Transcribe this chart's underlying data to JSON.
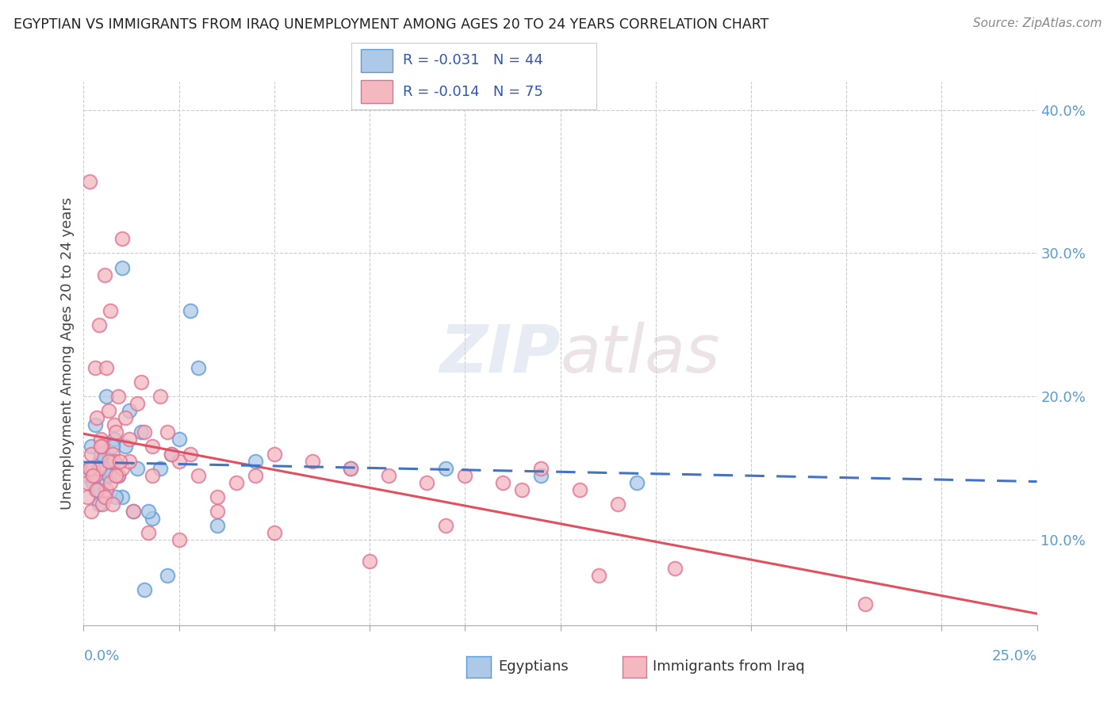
{
  "title": "EGYPTIAN VS IMMIGRANTS FROM IRAQ UNEMPLOYMENT AMONG AGES 20 TO 24 YEARS CORRELATION CHART",
  "source": "Source: ZipAtlas.com",
  "ylabel": "Unemployment Among Ages 20 to 24 years",
  "xmin": 0.0,
  "xmax": 25.0,
  "ymin": 4.0,
  "ymax": 42.0,
  "legend_r1": "R = -0.031",
  "legend_n1": "N = 44",
  "legend_r2": "R = -0.014",
  "legend_n2": "N = 75",
  "color_egyptian": "#aec9e8",
  "color_egyptian_edge": "#5b9bd5",
  "color_iraq": "#f4b8c1",
  "color_iraq_edge": "#e07090",
  "color_line_egyptian": "#4472c4",
  "color_line_iraq": "#e05060",
  "background_color": "#ffffff",
  "watermark": "ZIPatlas",
  "egyptians_x": [
    0.1,
    0.2,
    0.2,
    0.3,
    0.3,
    0.4,
    0.4,
    0.5,
    0.5,
    0.6,
    0.6,
    0.7,
    0.8,
    0.9,
    1.0,
    1.0,
    1.1,
    1.2,
    1.3,
    1.5,
    1.6,
    1.8,
    2.0,
    2.2,
    2.5,
    2.8,
    3.0,
    3.5,
    0.15,
    0.25,
    0.35,
    0.45,
    0.55,
    0.65,
    0.75,
    0.85,
    1.4,
    1.7,
    2.3,
    4.5,
    7.0,
    9.5,
    12.0,
    14.5
  ],
  "egyptians_y": [
    14.5,
    15.0,
    16.5,
    13.5,
    18.0,
    15.5,
    12.5,
    14.0,
    16.0,
    13.0,
    20.0,
    15.5,
    17.0,
    14.5,
    29.0,
    13.0,
    16.5,
    19.0,
    12.0,
    17.5,
    6.5,
    11.5,
    15.0,
    7.5,
    17.0,
    26.0,
    22.0,
    11.0,
    15.0,
    14.0,
    13.5,
    16.0,
    15.0,
    14.5,
    16.5,
    13.0,
    15.0,
    12.0,
    16.0,
    15.5,
    15.0,
    15.0,
    14.5,
    14.0
  ],
  "iraq_x": [
    0.1,
    0.1,
    0.15,
    0.2,
    0.2,
    0.25,
    0.3,
    0.3,
    0.35,
    0.4,
    0.4,
    0.45,
    0.5,
    0.5,
    0.55,
    0.6,
    0.6,
    0.65,
    0.7,
    0.7,
    0.75,
    0.8,
    0.8,
    0.85,
    0.9,
    0.9,
    1.0,
    1.0,
    1.1,
    1.2,
    1.3,
    1.4,
    1.5,
    1.6,
    1.8,
    2.0,
    2.2,
    2.5,
    2.8,
    3.0,
    3.5,
    4.0,
    5.0,
    6.0,
    7.0,
    8.0,
    9.0,
    10.0,
    11.0,
    12.0,
    13.0,
    14.0,
    15.5,
    0.15,
    0.25,
    0.35,
    0.45,
    0.55,
    0.65,
    0.75,
    0.85,
    1.7,
    2.3,
    4.5,
    20.5,
    1.2,
    1.8,
    2.5,
    3.5,
    5.0,
    7.5,
    9.5,
    11.5,
    13.5,
    0.95
  ],
  "iraq_y": [
    14.0,
    13.0,
    35.0,
    16.0,
    12.0,
    15.0,
    22.0,
    14.5,
    18.5,
    15.0,
    25.0,
    17.0,
    12.5,
    16.5,
    28.5,
    13.5,
    22.0,
    19.0,
    14.0,
    26.0,
    16.0,
    15.5,
    18.0,
    17.5,
    14.5,
    20.0,
    15.0,
    31.0,
    18.5,
    17.0,
    12.0,
    19.5,
    21.0,
    17.5,
    16.5,
    20.0,
    17.5,
    15.5,
    16.0,
    14.5,
    13.0,
    14.0,
    16.0,
    15.5,
    15.0,
    14.5,
    14.0,
    14.5,
    14.0,
    15.0,
    13.5,
    12.5,
    8.0,
    15.0,
    14.5,
    13.5,
    16.5,
    13.0,
    15.5,
    12.5,
    14.5,
    10.5,
    16.0,
    14.5,
    5.5,
    15.5,
    14.5,
    10.0,
    12.0,
    10.5,
    8.5,
    11.0,
    13.5,
    7.5,
    15.5
  ]
}
